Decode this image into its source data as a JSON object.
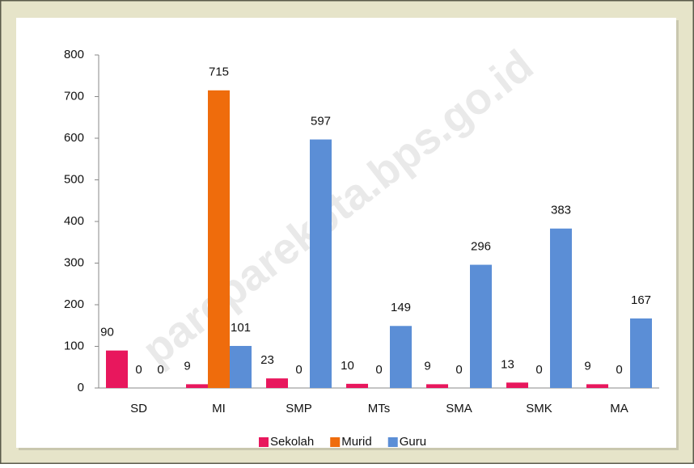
{
  "chart_data": {
    "type": "bar",
    "categories": [
      "SD",
      "MI",
      "SMP",
      "MTs",
      "SMA",
      "SMK",
      "MA"
    ],
    "series": [
      {
        "name": "Sekolah",
        "color": "#e8175d",
        "values": [
          90,
          9,
          23,
          10,
          9,
          13,
          9
        ]
      },
      {
        "name": "Murid",
        "color": "#ef6c0c",
        "values": [
          0,
          715,
          0,
          0,
          0,
          0,
          0
        ]
      },
      {
        "name": "Guru",
        "color": "#5b8ed6",
        "values": [
          0,
          101,
          597,
          149,
          296,
          383,
          167
        ]
      }
    ],
    "ylim": [
      0,
      800
    ],
    "yticks": [
      0,
      100,
      200,
      300,
      400,
      500,
      600,
      700,
      800
    ],
    "grid": false,
    "legend": "bottom",
    "watermark": "pareparekota.bps.go.id"
  }
}
